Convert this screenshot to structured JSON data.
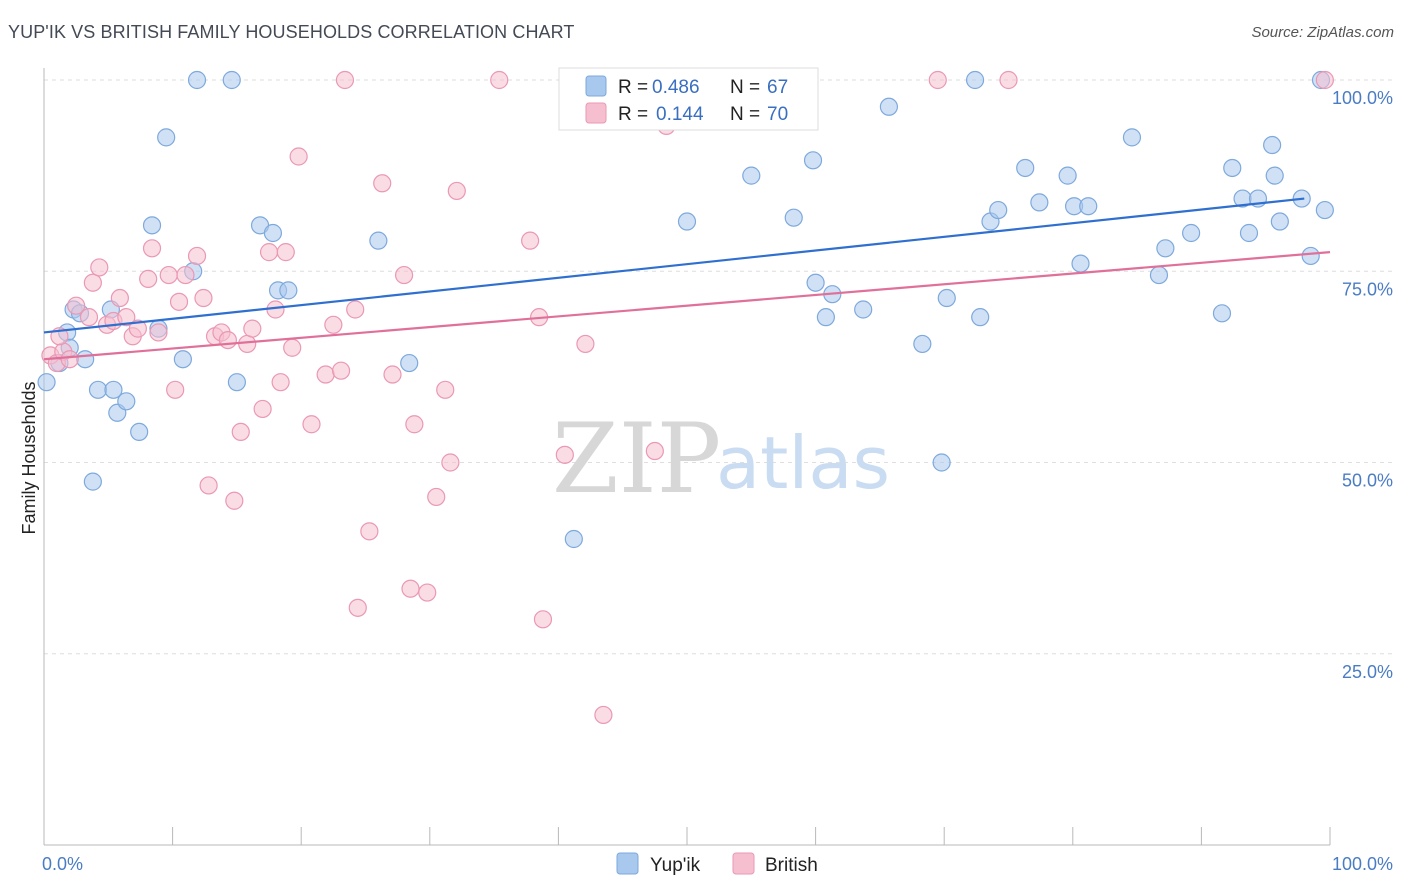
{
  "title": "YUP'IK VS BRITISH FAMILY HOUSEHOLDS CORRELATION CHART",
  "source": "Source: ZipAtlas.com",
  "legend": {
    "r_label": "R =",
    "n_label": "N =",
    "items": [
      {
        "name": "Yup'ik",
        "r": "0.486",
        "n": "67",
        "color": "#a9c8ee",
        "stroke": "#7ea9dc"
      },
      {
        "name": "British",
        "r": "0.144",
        "n": "70",
        "color": "#f6bfd0",
        "stroke": "#ea98b3"
      }
    ]
  },
  "watermark": {
    "zip": "ZIP",
    "atlas": "atlas"
  },
  "chart_data": {
    "type": "scatter",
    "title": "YUP'IK VS BRITISH FAMILY HOUSEHOLDS CORRELATION CHART",
    "xlabel": "",
    "ylabel": "Family Households",
    "xlim": [
      0,
      100
    ],
    "ylim": [
      0,
      100
    ],
    "x_tick_labels": [
      "0.0%",
      "100.0%"
    ],
    "y_tick_labels": [
      "25.0%",
      "50.0%",
      "75.0%",
      "100.0%"
    ],
    "y_ticks": [
      25,
      50,
      75,
      100
    ],
    "grid": "horizontal dashed",
    "legend_position": "top-center",
    "series": [
      {
        "name": "Yup'ik",
        "color": "#a9c8ee",
        "stroke": "#7ea9dc",
        "trend": {
          "x": [
            0,
            98
          ],
          "y": [
            67.0,
            84.5
          ],
          "color": "#2f6fcf"
        },
        "points": [
          [
            0.2,
            60.5
          ],
          [
            1.2,
            63
          ],
          [
            1.8,
            67
          ],
          [
            2.0,
            65
          ],
          [
            2.3,
            70
          ],
          [
            2.8,
            69.5
          ],
          [
            3.2,
            63.5
          ],
          [
            3.8,
            47.5
          ],
          [
            4.2,
            59.5
          ],
          [
            5.2,
            70
          ],
          [
            5.4,
            59.5
          ],
          [
            5.7,
            56.5
          ],
          [
            6.4,
            58
          ],
          [
            7.4,
            54
          ],
          [
            8.4,
            81
          ],
          [
            8.9,
            67.5
          ],
          [
            9.5,
            92.5
          ],
          [
            10.8,
            63.5
          ],
          [
            11.6,
            75
          ],
          [
            11.9,
            100
          ],
          [
            14.6,
            100
          ],
          [
            15.0,
            60.5
          ],
          [
            16.8,
            81
          ],
          [
            17.8,
            80
          ],
          [
            18.2,
            72.5
          ],
          [
            19.0,
            72.5
          ],
          [
            26.0,
            79
          ],
          [
            28.4,
            63
          ],
          [
            41.2,
            40
          ],
          [
            50.0,
            81.5
          ],
          [
            55.0,
            87.5
          ],
          [
            58.3,
            82
          ],
          [
            59.8,
            89.5
          ],
          [
            60.0,
            73.5
          ],
          [
            60.8,
            69
          ],
          [
            61.3,
            72
          ],
          [
            63.7,
            70
          ],
          [
            65.7,
            96.5
          ],
          [
            68.3,
            65.5
          ],
          [
            69.8,
            50
          ],
          [
            70.2,
            71.5
          ],
          [
            72.4,
            100
          ],
          [
            72.8,
            69
          ],
          [
            73.6,
            81.5
          ],
          [
            74.2,
            83
          ],
          [
            76.3,
            88.5
          ],
          [
            77.4,
            84
          ],
          [
            79.6,
            87.5
          ],
          [
            80.1,
            83.5
          ],
          [
            80.6,
            76
          ],
          [
            81.2,
            83.5
          ],
          [
            84.6,
            92.5
          ],
          [
            86.7,
            74.5
          ],
          [
            87.2,
            78
          ],
          [
            89.2,
            80
          ],
          [
            91.6,
            69.5
          ],
          [
            92.4,
            88.5
          ],
          [
            93.2,
            84.5
          ],
          [
            93.7,
            80
          ],
          [
            94.4,
            84.5
          ],
          [
            95.5,
            91.5
          ],
          [
            95.7,
            87.5
          ],
          [
            96.1,
            81.5
          ],
          [
            97.8,
            84.5
          ],
          [
            98.5,
            77
          ],
          [
            99.3,
            100
          ],
          [
            99.6,
            83
          ]
        ]
      },
      {
        "name": "British",
        "color": "#f6bfd0",
        "stroke": "#ea98b3",
        "trend": {
          "x": [
            0,
            100
          ],
          "y": [
            63.5,
            77.5
          ],
          "color": "#e0709a"
        },
        "points": [
          [
            0.5,
            64
          ],
          [
            1.0,
            63
          ],
          [
            1.5,
            64.5
          ],
          [
            2.5,
            70.5
          ],
          [
            3.5,
            69
          ],
          [
            3.8,
            73.5
          ],
          [
            4.3,
            75.5
          ],
          [
            4.9,
            68
          ],
          [
            5.4,
            68.5
          ],
          [
            5.9,
            71.5
          ],
          [
            6.4,
            69
          ],
          [
            6.9,
            66.5
          ],
          [
            7.3,
            67.5
          ],
          [
            8.1,
            74
          ],
          [
            8.4,
            78
          ],
          [
            8.9,
            67
          ],
          [
            9.7,
            74.5
          ],
          [
            10.2,
            59.5
          ],
          [
            10.5,
            71
          ],
          [
            11.0,
            74.5
          ],
          [
            11.9,
            77
          ],
          [
            12.4,
            71.5
          ],
          [
            12.8,
            47
          ],
          [
            13.3,
            66.5
          ],
          [
            13.8,
            67
          ],
          [
            14.3,
            66
          ],
          [
            14.8,
            45
          ],
          [
            15.3,
            54
          ],
          [
            15.8,
            65.5
          ],
          [
            16.2,
            67.5
          ],
          [
            17.0,
            57
          ],
          [
            17.5,
            77.5
          ],
          [
            18.0,
            70
          ],
          [
            18.4,
            60.5
          ],
          [
            18.8,
            77.5
          ],
          [
            19.3,
            65
          ],
          [
            19.8,
            90
          ],
          [
            20.8,
            55
          ],
          [
            21.9,
            61.5
          ],
          [
            22.5,
            68
          ],
          [
            23.1,
            62
          ],
          [
            23.4,
            100
          ],
          [
            24.2,
            70
          ],
          [
            24.4,
            31
          ],
          [
            25.3,
            41
          ],
          [
            26.3,
            86.5
          ],
          [
            27.1,
            61.5
          ],
          [
            28.0,
            74.5
          ],
          [
            28.5,
            33.5
          ],
          [
            28.8,
            55
          ],
          [
            29.8,
            33
          ],
          [
            30.5,
            45.5
          ],
          [
            31.2,
            59.5
          ],
          [
            31.6,
            50
          ],
          [
            32.1,
            85.5
          ],
          [
            35.4,
            100
          ],
          [
            37.8,
            79
          ],
          [
            38.5,
            69
          ],
          [
            38.8,
            29.5
          ],
          [
            40.5,
            51
          ],
          [
            42.1,
            65.5
          ],
          [
            43.5,
            17
          ],
          [
            47.5,
            51.5
          ],
          [
            48.4,
            94
          ],
          [
            50.9,
            100
          ],
          [
            69.5,
            100
          ],
          [
            75.0,
            100
          ],
          [
            99.6,
            100
          ],
          [
            1.2,
            66.5
          ],
          [
            2.0,
            63.5
          ]
        ]
      }
    ]
  }
}
